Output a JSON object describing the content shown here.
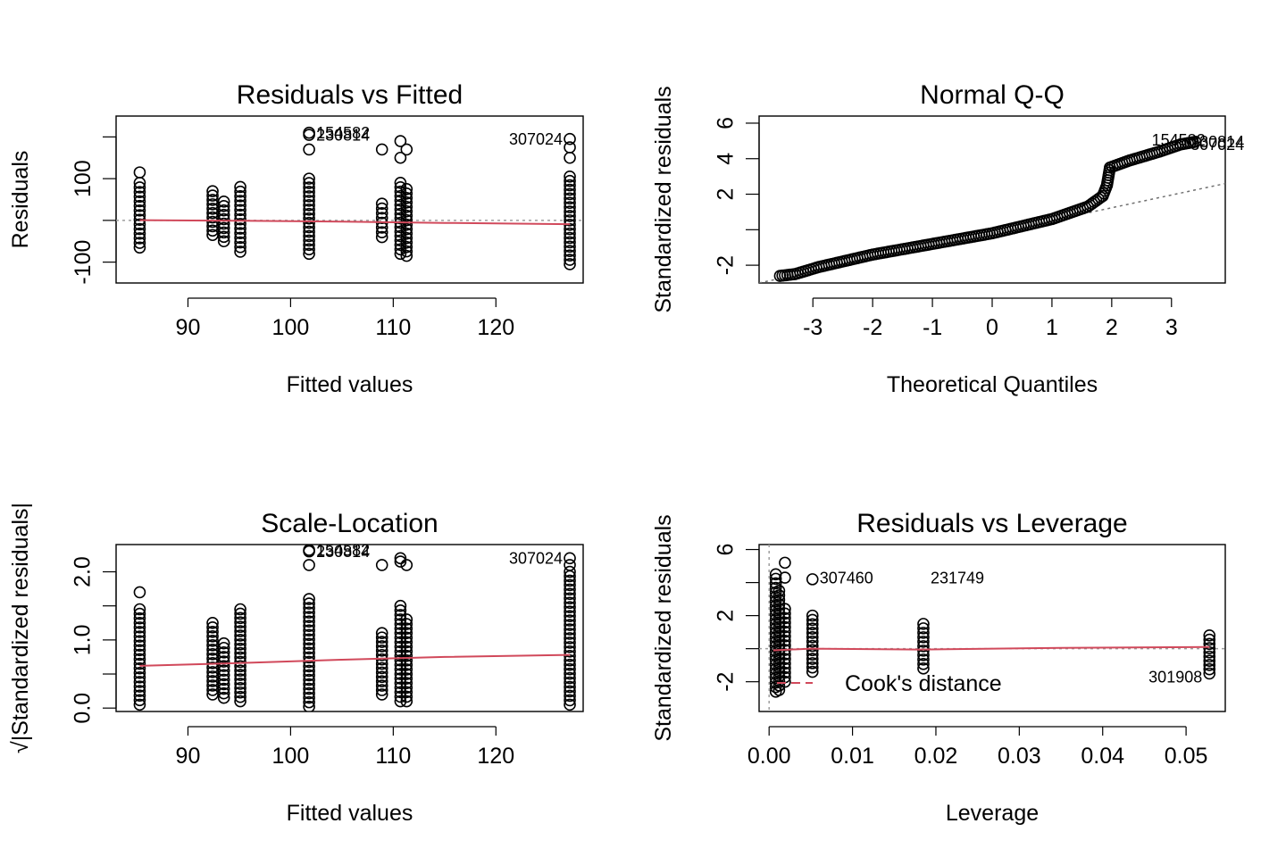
{
  "chart_data": [
    {
      "panel": "residuals-vs-fitted",
      "type": "scatter",
      "title": "Residuals vs Fitted",
      "xlabel": "Fitted values",
      "ylabel": "Residuals",
      "xlim": [
        83,
        128.5
      ],
      "ylim": [
        -150,
        250
      ],
      "xticks": [
        90,
        100,
        110,
        120
      ],
      "yticks": [
        -100,
        0,
        100,
        200
      ],
      "ytick_labels": [
        "-100",
        "",
        "100",
        ""
      ],
      "reference_line": {
        "y": 0,
        "style": "dotted",
        "color": "#9e9e9e"
      },
      "smooth": {
        "color": "#d1495b",
        "points": [
          [
            85.3,
            0.5
          ],
          [
            95,
            -1
          ],
          [
            105,
            -3
          ],
          [
            115,
            -6
          ],
          [
            127.2,
            -9
          ]
        ]
      },
      "groups": [
        {
          "x": 85.3,
          "y_min": -65,
          "y_max": 90,
          "extra": [
            115
          ]
        },
        {
          "x": 92.4,
          "y_min": -35,
          "y_max": 70
        },
        {
          "x": 93.5,
          "y_min": -50,
          "y_max": 45
        },
        {
          "x": 95.1,
          "y_min": -75,
          "y_max": 80
        },
        {
          "x": 101.8,
          "y_min": -80,
          "y_max": 100,
          "extra": [
            170,
            205,
            210
          ]
        },
        {
          "x": 108.9,
          "y_min": -40,
          "y_max": 40,
          "extra": [
            170
          ]
        },
        {
          "x": 110.7,
          "y_min": -80,
          "y_max": 90,
          "extra": [
            150,
            190
          ]
        },
        {
          "x": 111.3,
          "y_min": -85,
          "y_max": 75,
          "extra": [
            170
          ]
        },
        {
          "x": 127.2,
          "y_min": -105,
          "y_max": 105,
          "extra": [
            150,
            175,
            195
          ]
        }
      ],
      "labels": [
        {
          "text": "154582",
          "x": 101.8,
          "y": 210,
          "side": "right"
        },
        {
          "text": "230814",
          "x": 101.8,
          "y": 205,
          "side": "right"
        },
        {
          "text": "307024",
          "x": 127.2,
          "y": 195,
          "side": "left"
        }
      ]
    },
    {
      "panel": "normal-qq",
      "type": "scatter",
      "title": "Normal Q-Q",
      "xlabel": "Theoretical Quantiles",
      "ylabel": "Standardized residuals",
      "xlim": [
        -3.9,
        3.9
      ],
      "ylim": [
        -3.0,
        6.4
      ],
      "xticks": [
        -3,
        -2,
        -1,
        0,
        1,
        2,
        3
      ],
      "yticks": [
        -2,
        0,
        2,
        4,
        6
      ],
      "ytick_labels": [
        "-2",
        "",
        "2",
        "4",
        "6"
      ],
      "reference_line": {
        "x1": -3.9,
        "y1": -3.0,
        "x2": 3.9,
        "y2": 2.6,
        "style": "dotted",
        "color": "#707070"
      },
      "curve": [
        [
          -3.55,
          -2.6
        ],
        [
          -3.3,
          -2.5
        ],
        [
          -2.9,
          -2.1
        ],
        [
          -2.0,
          -1.4
        ],
        [
          0,
          -0.2
        ],
        [
          1.0,
          0.6
        ],
        [
          1.6,
          1.3
        ],
        [
          1.85,
          1.9
        ],
        [
          1.92,
          2.5
        ],
        [
          1.97,
          3.5
        ],
        [
          2.3,
          3.9
        ],
        [
          2.8,
          4.4
        ],
        [
          3.15,
          4.8
        ],
        [
          3.4,
          4.95
        ]
      ],
      "labels": [
        {
          "text": "154582",
          "x": 2.55,
          "y": 5.05,
          "side": "right"
        },
        {
          "text": "230814",
          "x": 3.2,
          "y": 4.95,
          "side": "right"
        },
        {
          "text": "307024",
          "x": 3.2,
          "y": 4.8,
          "side": "right"
        }
      ]
    },
    {
      "panel": "scale-location",
      "type": "scatter",
      "title": "Scale-Location",
      "xlabel": "Fitted values",
      "ylabel": "√|Standardized residuals|",
      "xlim": [
        83,
        128.5
      ],
      "ylim": [
        -0.05,
        2.4
      ],
      "xticks": [
        90,
        100,
        110,
        120
      ],
      "yticks": [
        0.0,
        0.5,
        1.0,
        1.5,
        2.0
      ],
      "ytick_labels": [
        "0.0",
        "",
        "1.0",
        "",
        "2.0"
      ],
      "smooth": {
        "color": "#d1495b",
        "points": [
          [
            85.3,
            0.62
          ],
          [
            95,
            0.66
          ],
          [
            105,
            0.71
          ],
          [
            115,
            0.75
          ],
          [
            127.2,
            0.78
          ]
        ]
      },
      "groups": [
        {
          "x": 85.3,
          "y_min": 0.05,
          "y_max": 1.45,
          "extra": [
            1.7
          ]
        },
        {
          "x": 92.4,
          "y_min": 0.2,
          "y_max": 1.25
        },
        {
          "x": 93.5,
          "y_min": 0.15,
          "y_max": 0.95
        },
        {
          "x": 95.1,
          "y_min": 0.1,
          "y_max": 1.45
        },
        {
          "x": 101.8,
          "y_min": 0.02,
          "y_max": 1.6,
          "extra": [
            2.1,
            2.3,
            2.32
          ]
        },
        {
          "x": 108.9,
          "y_min": 0.2,
          "y_max": 1.1,
          "extra": [
            2.1
          ]
        },
        {
          "x": 110.7,
          "y_min": 0.1,
          "y_max": 1.5,
          "extra": [
            2.15,
            2.2
          ]
        },
        {
          "x": 111.3,
          "y_min": 0.1,
          "y_max": 1.3,
          "extra": [
            2.1
          ]
        },
        {
          "x": 127.2,
          "y_min": 0.05,
          "y_max": 2.0,
          "extra": [
            2.1,
            2.2
          ]
        }
      ],
      "labels": [
        {
          "text": "154582",
          "x": 101.8,
          "y": 2.32,
          "side": "right"
        },
        {
          "text": "230814",
          "x": 101.8,
          "y": 2.3,
          "side": "right"
        },
        {
          "text": "307024",
          "x": 127.2,
          "y": 2.2,
          "side": "left"
        }
      ]
    },
    {
      "panel": "residuals-vs-leverage",
      "type": "scatter",
      "title": "Residuals vs Leverage",
      "xlabel": "Leverage",
      "ylabel": "Standardized residuals",
      "xlim": [
        -0.0012,
        0.0547
      ],
      "ylim": [
        -3.8,
        6.3
      ],
      "xticks": [
        0.0,
        0.01,
        0.02,
        0.03,
        0.04,
        0.05
      ],
      "xtick_labels": [
        "0.00",
        "0.01",
        "0.02",
        "0.03",
        "0.04",
        "0.05"
      ],
      "yticks": [
        -2,
        0,
        2,
        4,
        6
      ],
      "ytick_labels": [
        "-2",
        "",
        "2",
        "",
        "6"
      ],
      "reference_line": {
        "y": 0,
        "style": "dotted",
        "color": "#9e9e9e"
      },
      "vertical_line": {
        "x": 0,
        "style": "dotted",
        "color": "#9e9e9e"
      },
      "smooth": {
        "color": "#d1495b",
        "points": [
          [
            0.0005,
            -0.1
          ],
          [
            0.005,
            0.0
          ],
          [
            0.018,
            -0.05
          ],
          [
            0.035,
            0.05
          ],
          [
            0.0528,
            0.1
          ]
        ]
      },
      "groups": [
        {
          "x": 0.0008,
          "y_min": -2.6,
          "y_max": 4.5
        },
        {
          "x": 0.0012,
          "y_min": -2.5,
          "y_max": 3.5
        },
        {
          "x": 0.0019,
          "y_min": -2.0,
          "y_max": 2.4,
          "extra": [
            4.3,
            5.2
          ]
        },
        {
          "x": 0.0052,
          "y_min": -1.4,
          "y_max": 2.0,
          "extra": [
            4.2
          ]
        },
        {
          "x": 0.0185,
          "y_min": -1.2,
          "y_max": 1.5
        },
        {
          "x": 0.0528,
          "y_min": -1.5,
          "y_max": 0.8
        }
      ],
      "labels": [
        {
          "text": "307460",
          "x": 0.0052,
          "y": 4.3,
          "side": "right"
        },
        {
          "text": "231749",
          "x": 0.0185,
          "y": 4.3,
          "side": "right"
        },
        {
          "text": "301908",
          "x": 0.0528,
          "y": -1.7,
          "side": "left"
        }
      ],
      "legend": {
        "label": "Cook's distance",
        "style": "dashed",
        "color": "#d1495b",
        "placement": "bottom-left"
      }
    }
  ]
}
